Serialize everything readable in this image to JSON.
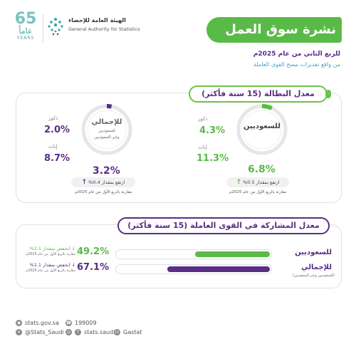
{
  "header": {
    "anniv_number": "65",
    "anniv_ar": "عاماً",
    "anniv_en": "YEARS",
    "org_ar": "الهيئة العامة للإحصاء",
    "org_en": "General Authority for Statistics",
    "title": "نشرة سوق العمل",
    "subtitle1": "للربع الثاني من عام 2025م",
    "subtitle2": "من واقع تقديرات مسح القوى العاملة"
  },
  "unemployment": {
    "heading": "معدل البطالة (15 سنة فأكثر)",
    "saudi": {
      "label": "للسعوديين",
      "rate": "6.8%",
      "rate_value": 6.8,
      "male_label": "ذكور",
      "male": "4.3%",
      "female_label": "إناث",
      "female": "11.3%",
      "change_text": "ارتفع بمقدار 0.5%",
      "compare": "مقارنة بالربع الأول من عام 2025م"
    },
    "total": {
      "label": "للإجمالي",
      "sub1": "للسعوديين",
      "sub2": "وغير السعوديين",
      "rate": "3.2%",
      "rate_value": 3.2,
      "male_label": "ذكور",
      "male": "2.0%",
      "female_label": "إناث",
      "female": "8.7%",
      "change_text": "ارتفع بمقدار 0.4%",
      "compare": "مقارنة بالربع الأول من عام 2025م"
    }
  },
  "participation": {
    "heading": "معدل المشاركة في القوى العاملة (15 سنة فأكثر)",
    "saudi": {
      "label": "للسعوديين",
      "value": "49.2%",
      "fill": 0.492,
      "change": "انخفض بمقدار 2.1%",
      "compare": "مقارنة بالربع الأول من عام 2025م"
    },
    "total": {
      "label": "للإجمالي",
      "sub": "(للسعوديين وغير السعوديين)",
      "value": "67.1%",
      "fill": 0.671,
      "change": "انخفض بمقدار 1.1%",
      "compare": "مقارنة بالربع الأول من عام 2025م"
    }
  },
  "footer": {
    "site": "stats.gov.sa",
    "phone": "199009",
    "x": "@Stats_Saudi",
    "ig": "stats.saudi",
    "gastat": "Gastat"
  },
  "colors": {
    "green": "#5aba47",
    "purple": "#5b2d86",
    "track": "#e6e6ea"
  }
}
